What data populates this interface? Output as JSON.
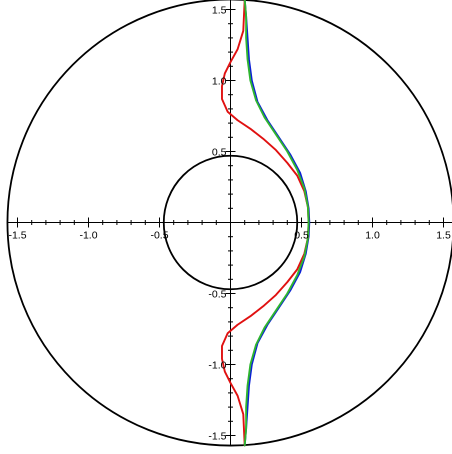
{
  "chart_data": {
    "type": "line",
    "xlim": [
      -1.57,
      1.57
    ],
    "ylim": [
      -1.57,
      1.57
    ],
    "grid": false,
    "x_ticks": [
      {
        "value": -1.5,
        "label": "-1.5"
      },
      {
        "value": -1.0,
        "label": "-1.0"
      },
      {
        "value": -0.5,
        "label": "-0.5"
      },
      {
        "value": 1.0,
        "label": "1.0"
      },
      {
        "value": 1.5,
        "label": "1.5"
      }
    ],
    "y_ticks": [
      {
        "value": 1.5,
        "label": "1.5"
      },
      {
        "value": 1.0,
        "label": "1.0"
      },
      {
        "value": 0.5,
        "label": "0.5"
      },
      {
        "value": -0.5,
        "label": "-0.5"
      },
      {
        "value": -1.0,
        "label": "-1.0"
      },
      {
        "value": -1.5,
        "label": "-1.5"
      }
    ],
    "x_extra_label": {
      "value": 0.5,
      "label": "0.5"
    },
    "circles": [
      {
        "radius": 1.5708,
        "color": "#000000"
      },
      {
        "radius": 0.47,
        "color": "#000000"
      }
    ],
    "series": [
      {
        "color": "#0a1fd6",
        "points": [
          [
            0.1,
            1.57
          ],
          [
            0.11,
            1.45
          ],
          [
            0.12,
            1.3
          ],
          [
            0.13,
            1.15
          ],
          [
            0.15,
            1.0
          ],
          [
            0.19,
            0.85
          ],
          [
            0.26,
            0.72
          ],
          [
            0.34,
            0.6
          ],
          [
            0.42,
            0.48
          ],
          [
            0.49,
            0.35
          ],
          [
            0.53,
            0.22
          ],
          [
            0.55,
            0.1
          ],
          [
            0.555,
            0.0
          ],
          [
            0.55,
            -0.1
          ],
          [
            0.53,
            -0.22
          ],
          [
            0.49,
            -0.35
          ],
          [
            0.42,
            -0.48
          ],
          [
            0.34,
            -0.6
          ],
          [
            0.26,
            -0.72
          ],
          [
            0.19,
            -0.85
          ],
          [
            0.15,
            -1.0
          ],
          [
            0.13,
            -1.15
          ],
          [
            0.12,
            -1.3
          ],
          [
            0.11,
            -1.45
          ],
          [
            0.1,
            -1.57
          ]
        ]
      },
      {
        "color": "#e01010",
        "points": [
          [
            0.1,
            1.57
          ],
          [
            0.09,
            1.35
          ],
          [
            0.05,
            1.22
          ],
          [
            0.0,
            1.13
          ],
          [
            -0.04,
            1.05
          ],
          [
            -0.06,
            0.96
          ],
          [
            -0.06,
            0.87
          ],
          [
            -0.02,
            0.78
          ],
          [
            0.05,
            0.72
          ],
          [
            0.14,
            0.66
          ],
          [
            0.23,
            0.59
          ],
          [
            0.32,
            0.51
          ],
          [
            0.4,
            0.42
          ],
          [
            0.47,
            0.33
          ],
          [
            0.52,
            0.22
          ],
          [
            0.545,
            0.11
          ],
          [
            0.55,
            0.0
          ],
          [
            0.545,
            -0.11
          ],
          [
            0.52,
            -0.22
          ],
          [
            0.47,
            -0.33
          ],
          [
            0.4,
            -0.42
          ],
          [
            0.32,
            -0.51
          ],
          [
            0.23,
            -0.59
          ],
          [
            0.14,
            -0.66
          ],
          [
            0.05,
            -0.72
          ],
          [
            -0.02,
            -0.78
          ],
          [
            -0.06,
            -0.87
          ],
          [
            -0.06,
            -0.96
          ],
          [
            -0.04,
            -1.05
          ],
          [
            0.0,
            -1.13
          ],
          [
            0.05,
            -1.22
          ],
          [
            0.09,
            -1.35
          ],
          [
            0.1,
            -1.57
          ]
        ]
      },
      {
        "color": "#2fb52f",
        "points": [
          [
            0.1,
            1.57
          ],
          [
            0.11,
            1.45
          ],
          [
            0.11,
            1.3
          ],
          [
            0.12,
            1.15
          ],
          [
            0.14,
            1.0
          ],
          [
            0.18,
            0.86
          ],
          [
            0.24,
            0.74
          ],
          [
            0.32,
            0.62
          ],
          [
            0.4,
            0.5
          ],
          [
            0.47,
            0.37
          ],
          [
            0.52,
            0.24
          ],
          [
            0.545,
            0.11
          ],
          [
            0.55,
            0.0
          ],
          [
            0.545,
            -0.11
          ],
          [
            0.52,
            -0.24
          ],
          [
            0.47,
            -0.37
          ],
          [
            0.4,
            -0.5
          ],
          [
            0.32,
            -0.62
          ],
          [
            0.24,
            -0.74
          ],
          [
            0.18,
            -0.86
          ],
          [
            0.14,
            -1.0
          ],
          [
            0.12,
            -1.15
          ],
          [
            0.11,
            -1.3
          ],
          [
            0.11,
            -1.45
          ],
          [
            0.1,
            -1.57
          ]
        ]
      }
    ]
  }
}
